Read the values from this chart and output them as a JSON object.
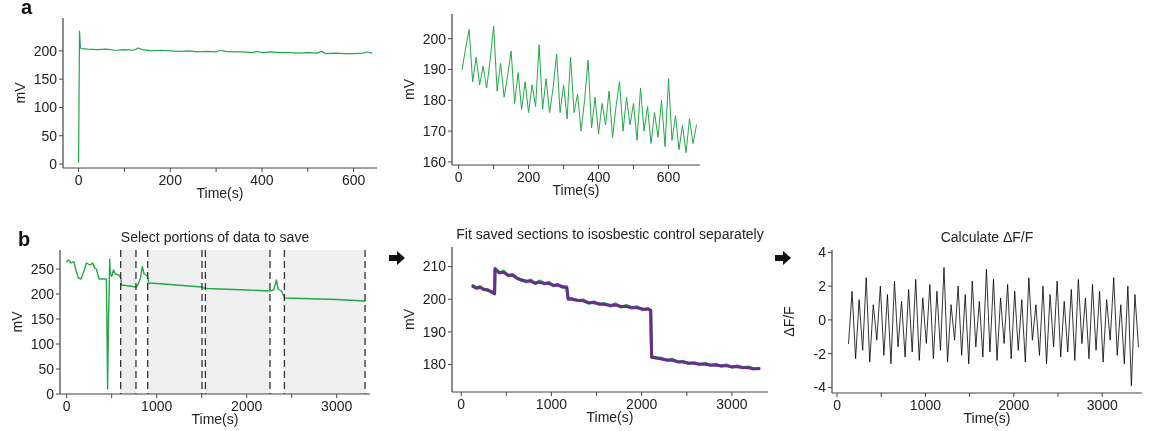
{
  "chart_data": [
    {
      "type": "line",
      "annotations": [
        "a"
      ],
      "xlabel": "Time(s)",
      "ylabel": "mV",
      "xlim": [
        -34,
        651
      ],
      "ylim": [
        -7,
        258
      ],
      "xticks": [
        0,
        {
          "value": 100,
          "label": null
        },
        200,
        {
          "value": 300,
          "label": null
        },
        400,
        {
          "value": 500,
          "label": null
        },
        600
      ],
      "yticks": [
        0,
        50,
        100,
        150,
        200
      ],
      "x": [
        0,
        2,
        4,
        8,
        20,
        40,
        60,
        80,
        100,
        120,
        130,
        140,
        160,
        180,
        200,
        220,
        240,
        260,
        280,
        300,
        310,
        320,
        340,
        360,
        380,
        390,
        400,
        420,
        440,
        460,
        480,
        500,
        520,
        530,
        540,
        560,
        580,
        600,
        620,
        630,
        640
      ],
      "series": [
        {
          "color": "#22a84a",
          "values": [
            3,
            235,
            205,
            204,
            203,
            202,
            203,
            201,
            202,
            201,
            205,
            202,
            200,
            201,
            200,
            199,
            200,
            198,
            199,
            198,
            201,
            199,
            198,
            198,
            197,
            199,
            197,
            198,
            197,
            197,
            196,
            197,
            196,
            199,
            195,
            196,
            195,
            195,
            196,
            198,
            196
          ]
        }
      ]
    },
    {
      "type": "line",
      "xlabel": "Time(s)",
      "ylabel": "mV",
      "xlim": [
        -19,
        690
      ],
      "ylim": [
        159,
        208
      ],
      "xticks": [
        0,
        {
          "value": 100,
          "label": null
        },
        200,
        {
          "value": 300,
          "label": null
        },
        400,
        {
          "value": 500,
          "label": null
        },
        600
      ],
      "yticks": [
        160,
        170,
        180,
        190,
        200
      ],
      "x": [
        10,
        20,
        30,
        40,
        50,
        60,
        70,
        80,
        90,
        100,
        110,
        120,
        130,
        140,
        150,
        160,
        170,
        180,
        190,
        200,
        210,
        220,
        230,
        240,
        250,
        260,
        270,
        280,
        290,
        300,
        310,
        320,
        330,
        340,
        350,
        360,
        370,
        380,
        390,
        400,
        410,
        420,
        430,
        440,
        450,
        460,
        470,
        480,
        490,
        500,
        510,
        520,
        530,
        540,
        550,
        560,
        570,
        580,
        590,
        600,
        610,
        620,
        630,
        640,
        650,
        660,
        670,
        680
      ],
      "series": [
        {
          "color": "#22a84a",
          "values": [
            190,
            197,
            203,
            186,
            194,
            185,
            191,
            184,
            193,
            204,
            183,
            192,
            181,
            188,
            196,
            179,
            189,
            177,
            186,
            176,
            185,
            178,
            198,
            177,
            187,
            176,
            184,
            195,
            176,
            185,
            174,
            194,
            176,
            182,
            170,
            180,
            193,
            171,
            181,
            169,
            179,
            172,
            183,
            168,
            178,
            186,
            170,
            181,
            172,
            179,
            167,
            184,
            170,
            178,
            166,
            176,
            168,
            180,
            165,
            187,
            167,
            175,
            164,
            172,
            163,
            174,
            166,
            172
          ]
        }
      ]
    },
    {
      "type": "line",
      "annotations": [
        "b"
      ],
      "title": "Select portions of data to save",
      "xlabel": "Time(s)",
      "ylabel": "mV",
      "xlim": [
        -74,
        3370
      ],
      "ylim": [
        0,
        288
      ],
      "xticks": [
        0,
        {
          "value": 500,
          "label": null
        },
        1000,
        {
          "value": 1500,
          "label": null
        },
        2000,
        {
          "value": 2500,
          "label": null
        },
        3000
      ],
      "yticks": [
        0,
        50,
        100,
        150,
        200,
        250
      ],
      "bands": [
        {
          "axis": "x",
          "from": 600,
          "to": 770,
          "color": "#efefef"
        },
        {
          "axis": "x",
          "from": 900,
          "to": 1504,
          "color": "#efefef"
        },
        {
          "axis": "x",
          "from": 1541,
          "to": 2259,
          "color": "#efefef"
        },
        {
          "axis": "x",
          "from": 2419,
          "to": 3315,
          "color": "#efefef"
        }
      ],
      "ref_lines": [
        {
          "axis": "x",
          "value": 600,
          "color": "#333333",
          "line_style": "dashed"
        },
        {
          "axis": "x",
          "value": 770,
          "color": "#333333",
          "line_style": "dashed"
        },
        {
          "axis": "x",
          "value": 900,
          "color": "#333333",
          "line_style": "dashed"
        },
        {
          "axis": "x",
          "value": 1504,
          "color": "#333333",
          "line_style": "dashed"
        },
        {
          "axis": "x",
          "value": 1541,
          "color": "#333333",
          "line_style": "dashed"
        },
        {
          "axis": "x",
          "value": 2259,
          "color": "#333333",
          "line_style": "dashed"
        },
        {
          "axis": "x",
          "value": 2419,
          "color": "#333333",
          "line_style": "dashed"
        },
        {
          "axis": "x",
          "value": 3315,
          "color": "#333333",
          "line_style": "dashed"
        }
      ],
      "x": [
        0,
        20,
        50,
        80,
        100,
        130,
        160,
        190,
        220,
        260,
        290,
        310,
        330,
        360,
        440,
        445,
        455,
        465,
        470,
        478,
        485,
        500,
        520,
        540,
        580,
        600,
        610,
        700,
        770,
        790,
        820,
        840,
        860,
        880,
        900,
        910,
        1000,
        1500,
        1520,
        1560,
        2000,
        2250,
        2300,
        2330,
        2350,
        2390,
        2420,
        3000,
        3315
      ],
      "series": [
        {
          "color": "#22a84a",
          "values": [
            265,
            268,
            262,
            265,
            250,
            232,
            230,
            245,
            262,
            258,
            262,
            252,
            250,
            230,
            230,
            180,
            10,
            150,
            190,
            270,
            240,
            235,
            248,
            240,
            238,
            232,
            218,
            216,
            214,
            218,
            232,
            255,
            240,
            238,
            235,
            222,
            221,
            214,
            212,
            211,
            208,
            206,
            208,
            228,
            210,
            205,
            192,
            189,
            186
          ]
        }
      ]
    },
    {
      "type": "line",
      "title": "Fit saved sections to isosbestic control separately",
      "xlabel": "Time(s)",
      "ylabel": "mV",
      "xlim": [
        -102,
        3400
      ],
      "ylim": [
        171.6,
        216
      ],
      "xticks": [
        0,
        {
          "value": 500,
          "label": null
        },
        1000,
        {
          "value": 1500,
          "label": null
        },
        2000,
        {
          "value": 2500,
          "label": null
        },
        3000
      ],
      "yticks": [
        180,
        190,
        200,
        210
      ],
      "x": [
        130,
        170,
        210,
        250,
        290,
        330,
        370,
        375,
        420,
        470,
        520,
        570,
        620,
        670,
        720,
        770,
        820,
        870,
        920,
        970,
        1020,
        1070,
        1120,
        1170,
        1185,
        1230,
        1290,
        1350,
        1410,
        1470,
        1530,
        1590,
        1650,
        1710,
        1770,
        1830,
        1890,
        1950,
        2010,
        2070,
        2100,
        2110,
        2160,
        2220,
        2280,
        2340,
        2400,
        2460,
        2520,
        2580,
        2640,
        2700,
        2760,
        2820,
        2880,
        2940,
        3000,
        3060,
        3120,
        3180,
        3240,
        3300
      ],
      "series": [
        {
          "color": "#22a84a",
          "values": [
            204.2,
            203.3,
            203.9,
            202.9,
            203.0,
            202.2,
            201.6,
            209.5,
            208.0,
            208.6,
            207.2,
            207.6,
            206.3,
            206.0,
            205.3,
            205.9,
            204.8,
            205.6,
            204.7,
            205.2,
            204.1,
            204.6,
            203.7,
            203.8,
            200.3,
            200.2,
            199.6,
            199.8,
            198.8,
            199.2,
            198.4,
            198.7,
            197.9,
            198.6,
            197.6,
            198.1,
            197.3,
            197.7,
            196.8,
            197.2,
            196.5,
            182.5,
            182.1,
            181.9,
            181.3,
            181.6,
            180.8,
            181.0,
            180.3,
            180.6,
            180.0,
            180.4,
            179.8,
            180.1,
            179.5,
            179.9,
            179.2,
            179.6,
            179.0,
            179.3,
            178.6,
            178.9
          ]
        },
        {
          "color": "#6a2c91",
          "values": [
            203.9,
            203.5,
            203.6,
            203.1,
            202.8,
            202.4,
            201.8,
            209.2,
            208.3,
            208.2,
            207.4,
            207.3,
            206.5,
            205.8,
            205.6,
            205.5,
            205.0,
            205.2,
            204.9,
            204.8,
            204.3,
            204.3,
            203.9,
            203.5,
            200.0,
            200.0,
            199.7,
            199.5,
            199.0,
            198.9,
            198.6,
            198.4,
            198.2,
            198.2,
            197.8,
            197.8,
            197.5,
            197.4,
            197.0,
            196.9,
            196.6,
            182.2,
            182.0,
            181.7,
            181.4,
            181.3,
            180.9,
            180.8,
            180.5,
            180.4,
            180.2,
            180.1,
            179.9,
            179.8,
            179.6,
            179.6,
            179.3,
            179.3,
            179.1,
            179.0,
            178.8,
            178.7
          ]
        }
      ]
    },
    {
      "type": "line",
      "title": "Calculate ΔF/F",
      "xlabel": "Time(s)",
      "ylabel": "ΔF/F",
      "xlim": [
        -57,
        3450
      ],
      "ylim": [
        -4.33,
        4.14
      ],
      "xticks": [
        0,
        {
          "value": 500,
          "label": null
        },
        1000,
        {
          "value": 1500,
          "label": null
        },
        2000,
        {
          "value": 2500,
          "label": null
        },
        3000
      ],
      "yticks": [
        -4,
        -2,
        0,
        2,
        4
      ],
      "x": [
        130,
        170,
        210,
        250,
        290,
        330,
        370,
        410,
        450,
        490,
        530,
        570,
        610,
        650,
        690,
        730,
        770,
        810,
        850,
        890,
        930,
        970,
        1010,
        1050,
        1090,
        1130,
        1170,
        1210,
        1250,
        1290,
        1330,
        1370,
        1410,
        1450,
        1490,
        1530,
        1570,
        1610,
        1650,
        1690,
        1730,
        1770,
        1810,
        1850,
        1890,
        1930,
        1970,
        2010,
        2050,
        2090,
        2130,
        2170,
        2210,
        2250,
        2290,
        2330,
        2370,
        2410,
        2450,
        2490,
        2530,
        2570,
        2610,
        2650,
        2690,
        2730,
        2770,
        2810,
        2850,
        2890,
        2930,
        2970,
        3010,
        3050,
        3090,
        3130,
        3170,
        3210,
        3250,
        3290,
        3330,
        3370,
        3410
      ],
      "series": [
        {
          "color": "#000000",
          "values": [
            -1.4,
            1.7,
            -2.3,
            1.2,
            -1.8,
            2.5,
            -2.5,
            0.9,
            -1.2,
            2.0,
            -2.1,
            1.5,
            -2.6,
            2.3,
            -1.6,
            1.1,
            -2.2,
            1.8,
            -1.9,
            2.4,
            -2.4,
            1.3,
            -1.4,
            2.1,
            -2.3,
            1.7,
            -1.8,
            3.1,
            -2.5,
            0.9,
            -1.2,
            2.0,
            -2.1,
            1.5,
            -2.6,
            2.3,
            -1.6,
            1.1,
            -2.2,
            3.0,
            -1.9,
            2.4,
            -2.4,
            1.3,
            -1.4,
            2.1,
            -2.3,
            1.7,
            -1.8,
            1.2,
            -2.5,
            2.5,
            -1.2,
            0.9,
            -2.1,
            2.0,
            -2.6,
            1.5,
            -1.6,
            2.3,
            -2.2,
            1.1,
            -1.9,
            1.8,
            -2.4,
            2.4,
            -1.4,
            1.3,
            -2.3,
            2.1,
            -1.8,
            1.7,
            -2.5,
            1.2,
            -1.2,
            2.5,
            -2.1,
            0.9,
            -2.6,
            2.0,
            -3.9,
            1.5,
            -1.6
          ]
        }
      ]
    }
  ]
}
